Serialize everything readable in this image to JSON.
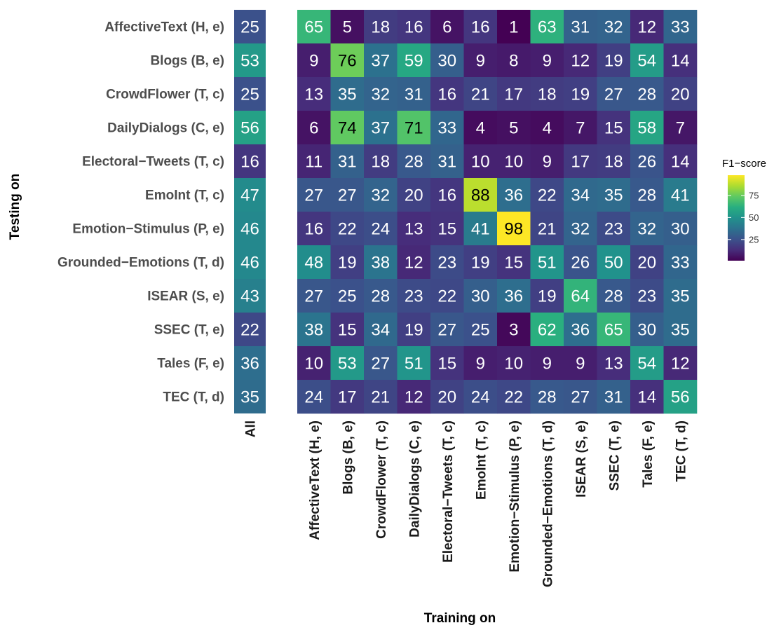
{
  "chart_data": {
    "type": "heatmap",
    "xlabel": "Training on",
    "ylabel": "Testing on",
    "legend_title": "F1−score",
    "legend_ticks": [
      25,
      50,
      75
    ],
    "color_range": [
      1,
      98
    ],
    "colormap": "viridis",
    "all_column_label": "All",
    "row_labels": [
      "AffectiveText (H, e)",
      "Blogs (B, e)",
      "CrowdFlower (T, c)",
      "DailyDialogs (C, e)",
      "Electoral−Tweets (T, c)",
      "EmoInt (T, c)",
      "Emotion−Stimulus (P, e)",
      "Grounded−Emotions (T, d)",
      "ISEAR (S, e)",
      "SSEC (T, e)",
      "Tales (F, e)",
      "TEC (T, d)"
    ],
    "col_labels": [
      "AffectiveText (H, e)",
      "Blogs (B, e)",
      "CrowdFlower (T, c)",
      "DailyDialogs (C, e)",
      "Electoral−Tweets (T, c)",
      "EmoInt (T, c)",
      "Emotion−Stimulus (P, e)",
      "Grounded−Emotions (T, d)",
      "ISEAR (S, e)",
      "SSEC (T, e)",
      "Tales (F, e)",
      "TEC (T, d)"
    ],
    "all_values": [
      25,
      53,
      25,
      56,
      16,
      47,
      46,
      46,
      43,
      22,
      36,
      35
    ],
    "values": [
      [
        65,
        5,
        18,
        16,
        6,
        16,
        1,
        63,
        31,
        32,
        12,
        33
      ],
      [
        9,
        76,
        37,
        59,
        30,
        9,
        8,
        9,
        12,
        19,
        54,
        14
      ],
      [
        13,
        35,
        32,
        31,
        16,
        21,
        17,
        18,
        19,
        27,
        28,
        20
      ],
      [
        6,
        74,
        37,
        71,
        33,
        4,
        5,
        4,
        7,
        15,
        58,
        7
      ],
      [
        11,
        31,
        18,
        28,
        31,
        10,
        10,
        9,
        17,
        18,
        26,
        14
      ],
      [
        27,
        27,
        32,
        20,
        16,
        88,
        36,
        22,
        34,
        35,
        28,
        41
      ],
      [
        16,
        22,
        24,
        13,
        15,
        41,
        98,
        21,
        32,
        23,
        32,
        30
      ],
      [
        48,
        19,
        38,
        12,
        23,
        19,
        15,
        51,
        26,
        50,
        20,
        33
      ],
      [
        27,
        25,
        28,
        23,
        22,
        30,
        36,
        19,
        64,
        28,
        23,
        35
      ],
      [
        38,
        15,
        34,
        19,
        27,
        25,
        3,
        62,
        36,
        65,
        30,
        35
      ],
      [
        10,
        53,
        27,
        51,
        15,
        9,
        10,
        9,
        9,
        13,
        54,
        12
      ],
      [
        24,
        17,
        21,
        12,
        20,
        24,
        22,
        28,
        27,
        31,
        14,
        56
      ]
    ]
  }
}
